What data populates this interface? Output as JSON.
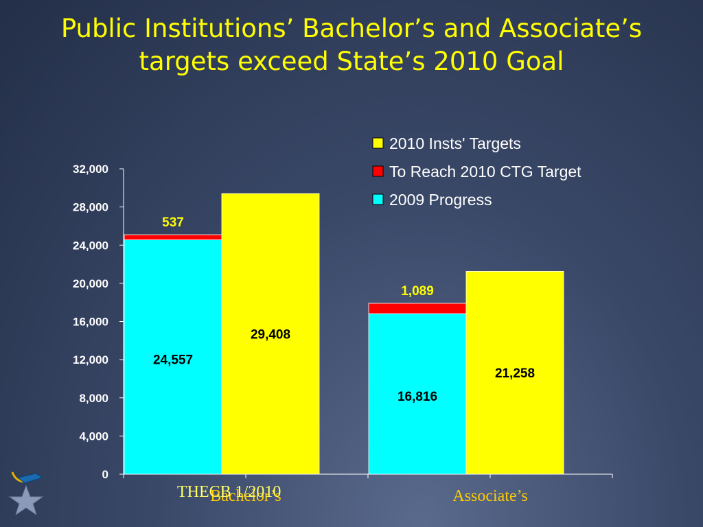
{
  "slide": {
    "title_line1": "Public Institutions’ Bachelor’s and Associate’s",
    "title_line2": "targets exceed State’s 2010 Goal",
    "footer": "THECB 1/2010"
  },
  "colors": {
    "progress": "#00ffff",
    "to_reach": "#ff0000",
    "insts_targets": "#ffff00",
    "title": "#ffff00",
    "category_label": "#ffcc00"
  },
  "icons": {
    "logo": "graduation-star-icon"
  },
  "chart_data": {
    "type": "bar",
    "categories": [
      "Bachelor’s",
      "Associate’s"
    ],
    "ylim": [
      0,
      32000
    ],
    "yticks": [
      0,
      4000,
      8000,
      12000,
      16000,
      20000,
      24000,
      28000,
      32000
    ],
    "ytick_labels": [
      "0",
      "4,000",
      "8,000",
      "12,000",
      "16,000",
      "20,000",
      "24,000",
      "28,000",
      "32,000"
    ],
    "legend_position": "top-right",
    "legend": [
      "2010 Insts' Targets",
      "To Reach 2010 CTG Target",
      "2009 Progress"
    ],
    "series": [
      {
        "name": "2009 Progress",
        "stack": "a",
        "values": [
          24557,
          16816
        ],
        "labels": [
          "24,557",
          "16,816"
        ]
      },
      {
        "name": "To Reach 2010 CTG Target",
        "stack": "a",
        "values": [
          537,
          1089
        ],
        "labels": [
          "537",
          "1,089"
        ]
      },
      {
        "name": "2010 Insts' Targets",
        "stack": "b",
        "values": [
          29408,
          21258
        ],
        "labels": [
          "29,408",
          "21,258"
        ]
      }
    ],
    "grid": false
  }
}
